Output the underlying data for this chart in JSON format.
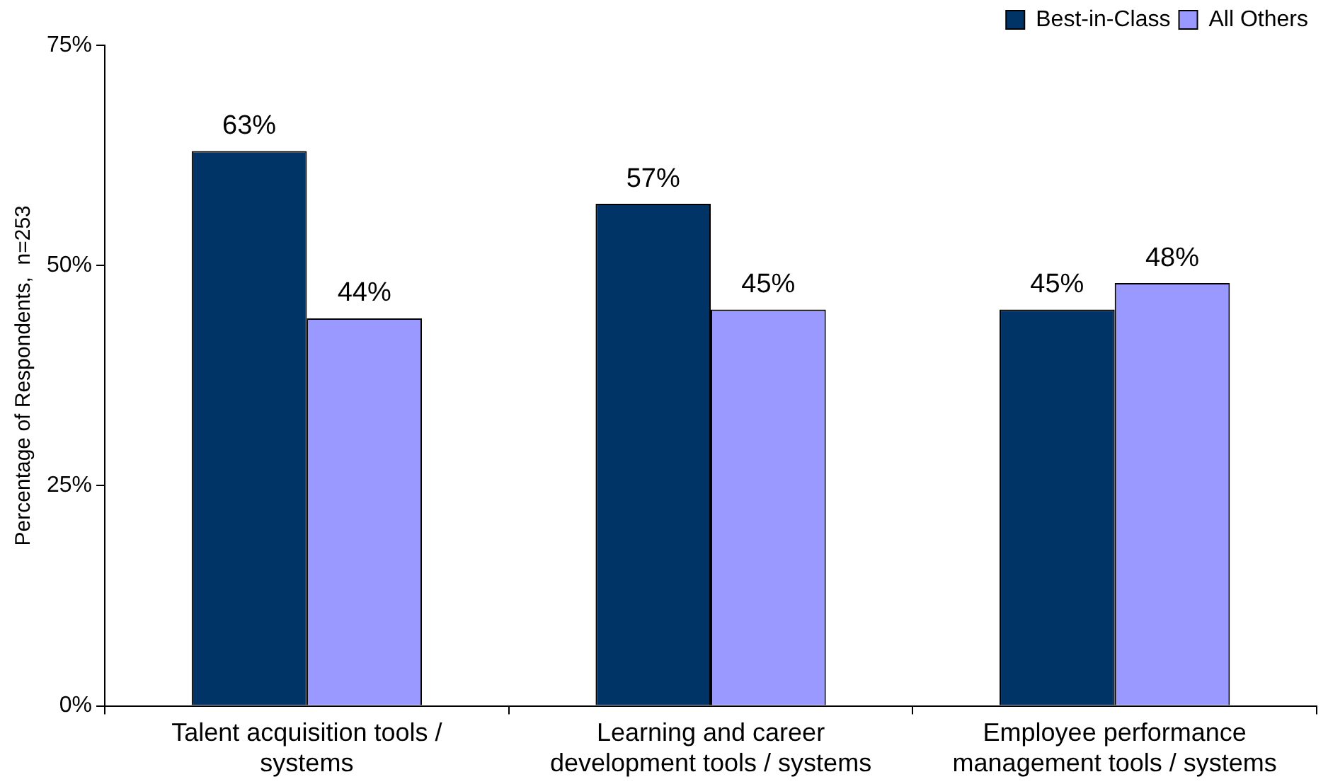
{
  "chart_data": {
    "type": "bar",
    "ylabel": "Percentage of Respondents,  n=253",
    "categories": [
      "Talent acquisition tools / systems",
      "Learning and career development tools / systems",
      "Employee performance management tools / systems"
    ],
    "series": [
      {
        "name": "Best-in-Class",
        "color": "#003366",
        "values": [
          63,
          57,
          45
        ],
        "value_labels": [
          "63%",
          "57%",
          "45%"
        ]
      },
      {
        "name": "All Others",
        "color": "#9999ff",
        "values": [
          44,
          45,
          48
        ],
        "value_labels": [
          "44%",
          "45%",
          "48%"
        ]
      }
    ],
    "ylim": [
      0,
      75
    ],
    "yticks": [
      {
        "value": 0,
        "label": "0%"
      },
      {
        "value": 25,
        "label": "25%"
      },
      {
        "value": 50,
        "label": "50%"
      },
      {
        "value": 75,
        "label": "75%"
      }
    ],
    "grid": false,
    "legend": "top right"
  }
}
